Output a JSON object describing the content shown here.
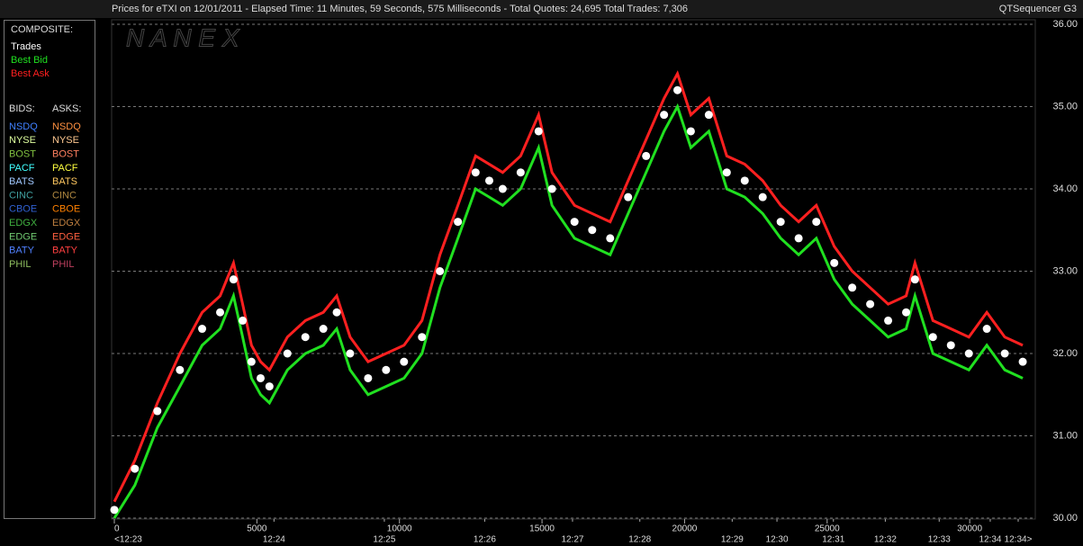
{
  "header": {
    "title": "Prices for  eTXI  on  12/01/2011  -  Elapsed Time: 11 Minutes, 59 Seconds, 575 Milliseconds  -  Total Quotes: 24,695  Total Trades: 7,306",
    "right": "QTSequencer G3"
  },
  "legend": {
    "composite_label": "COMPOSITE:",
    "bids_label": "BIDS:",
    "asks_label": "ASKS:",
    "bids": [
      {
        "name": "NSDQ",
        "color": "#4080ff"
      },
      {
        "name": "NYSE",
        "color": "#e0ffa0"
      },
      {
        "name": "BOST",
        "color": "#80c040"
      },
      {
        "name": "PACF",
        "color": "#40ffff"
      },
      {
        "name": "BATS",
        "color": "#a0c8ff"
      },
      {
        "name": "CINC",
        "color": "#40a0a0"
      },
      {
        "name": "CBOE",
        "color": "#3060d0"
      },
      {
        "name": "EDGX",
        "color": "#40b040"
      },
      {
        "name": "EDGE",
        "color": "#70c870"
      },
      {
        "name": "BATY",
        "color": "#5080ff"
      },
      {
        "name": "PHIL",
        "color": "#90c060"
      }
    ],
    "asks": [
      {
        "name": "NSDQ",
        "color": "#ff9040"
      },
      {
        "name": "NYSE",
        "color": "#ffc890"
      },
      {
        "name": "BOST",
        "color": "#ff8060"
      },
      {
        "name": "PACF",
        "color": "#ffff40"
      },
      {
        "name": "BATS",
        "color": "#ffc860"
      },
      {
        "name": "CINC",
        "color": "#b08840"
      },
      {
        "name": "CBOE",
        "color": "#ff8000"
      },
      {
        "name": "EDGX",
        "color": "#c08040"
      },
      {
        "name": "EDGE",
        "color": "#ff6040"
      },
      {
        "name": "BATY",
        "color": "#ff4040"
      },
      {
        "name": "PHIL",
        "color": "#c04060"
      }
    ]
  },
  "chart_data": {
    "type": "line",
    "watermark": "N A N E X",
    "x": [
      0,
      720,
      1510,
      2300,
      3080,
      3710,
      4180,
      4500,
      4810,
      5130,
      5440,
      6070,
      6700,
      7330,
      7800,
      8270,
      8900,
      9530,
      10160,
      10790,
      11420,
      12050,
      12670,
      13150,
      13620,
      14250,
      14880,
      15350,
      16140,
      16760,
      17390,
      18020,
      18650,
      19280,
      19750,
      20220,
      20850,
      21480,
      22110,
      22740,
      23370,
      24000,
      24620,
      25250,
      25880,
      26510,
      27140,
      27770,
      28080,
      28710,
      29340,
      29970,
      30600,
      31230,
      31860
    ],
    "series": [
      {
        "name": "Trades",
        "color": "#ffffff",
        "values": [
          30.1,
          30.6,
          31.3,
          31.8,
          32.3,
          32.5,
          32.9,
          32.4,
          31.9,
          31.7,
          31.6,
          32.0,
          32.2,
          32.3,
          32.5,
          32.0,
          31.7,
          31.8,
          31.9,
          32.2,
          33.0,
          33.6,
          34.2,
          34.1,
          34.0,
          34.2,
          34.7,
          34.0,
          33.6,
          33.5,
          33.4,
          33.9,
          34.4,
          34.9,
          35.2,
          34.7,
          34.9,
          34.2,
          34.1,
          33.9,
          33.6,
          33.4,
          33.6,
          33.1,
          32.8,
          32.6,
          32.4,
          32.5,
          32.9,
          32.2,
          32.1,
          32.0,
          32.3,
          32.0,
          31.9
        ]
      },
      {
        "name": "Best Bid",
        "color": "#20e020",
        "values": [
          30.0,
          30.4,
          31.1,
          31.6,
          32.1,
          32.3,
          32.7,
          32.2,
          31.7,
          31.5,
          31.4,
          31.8,
          32.0,
          32.1,
          32.3,
          31.8,
          31.5,
          31.6,
          31.7,
          32.0,
          32.8,
          33.4,
          34.0,
          33.9,
          33.8,
          34.0,
          34.5,
          33.8,
          33.4,
          33.3,
          33.2,
          33.7,
          34.2,
          34.7,
          35.0,
          34.5,
          34.7,
          34.0,
          33.9,
          33.7,
          33.4,
          33.2,
          33.4,
          32.9,
          32.6,
          32.4,
          32.2,
          32.3,
          32.7,
          32.0,
          31.9,
          31.8,
          32.1,
          31.8,
          31.7
        ]
      },
      {
        "name": "Best Ask",
        "color": "#ff2020",
        "values": [
          30.2,
          30.7,
          31.4,
          32.0,
          32.5,
          32.7,
          33.1,
          32.6,
          32.1,
          31.9,
          31.8,
          32.2,
          32.4,
          32.5,
          32.7,
          32.2,
          31.9,
          32.0,
          32.1,
          32.4,
          33.2,
          33.8,
          34.4,
          34.3,
          34.2,
          34.4,
          34.9,
          34.2,
          33.8,
          33.7,
          33.6,
          34.1,
          34.6,
          35.1,
          35.4,
          34.9,
          35.1,
          34.4,
          34.3,
          34.1,
          33.8,
          33.6,
          33.8,
          33.3,
          33.0,
          32.8,
          32.6,
          32.7,
          33.1,
          32.4,
          32.3,
          32.2,
          32.5,
          32.2,
          32.1
        ]
      }
    ],
    "xlim": [
      0,
      32300
    ],
    "xticks": [
      0,
      5000,
      10000,
      15000,
      20000,
      25000,
      30000
    ],
    "time_ticks": [
      {
        "value": 0,
        "label": "<12:23"
      },
      {
        "value": 5600,
        "label": "12:24"
      },
      {
        "value": 9470,
        "label": "12:25"
      },
      {
        "value": 12990,
        "label": "12:26"
      },
      {
        "value": 16070,
        "label": "12:27"
      },
      {
        "value": 18430,
        "label": "12:28"
      },
      {
        "value": 21670,
        "label": "12:29"
      },
      {
        "value": 23240,
        "label": "12:30"
      },
      {
        "value": 25220,
        "label": "12:31"
      },
      {
        "value": 27040,
        "label": "12:32"
      },
      {
        "value": 28930,
        "label": "12:33"
      },
      {
        "value": 30720,
        "label": "12:34"
      },
      {
        "value": 31700,
        "label": "12:34>"
      }
    ],
    "ylim": [
      30,
      36
    ],
    "yticks": [
      {
        "value": 30,
        "label": "30.00"
      },
      {
        "value": 31,
        "label": "31.00"
      },
      {
        "value": 32,
        "label": "32.00"
      },
      {
        "value": 33,
        "label": "33.00"
      },
      {
        "value": 34,
        "label": "34.00"
      },
      {
        "value": 35,
        "label": "35.00"
      },
      {
        "value": 36,
        "label": "36.00"
      }
    ],
    "grid": true
  }
}
